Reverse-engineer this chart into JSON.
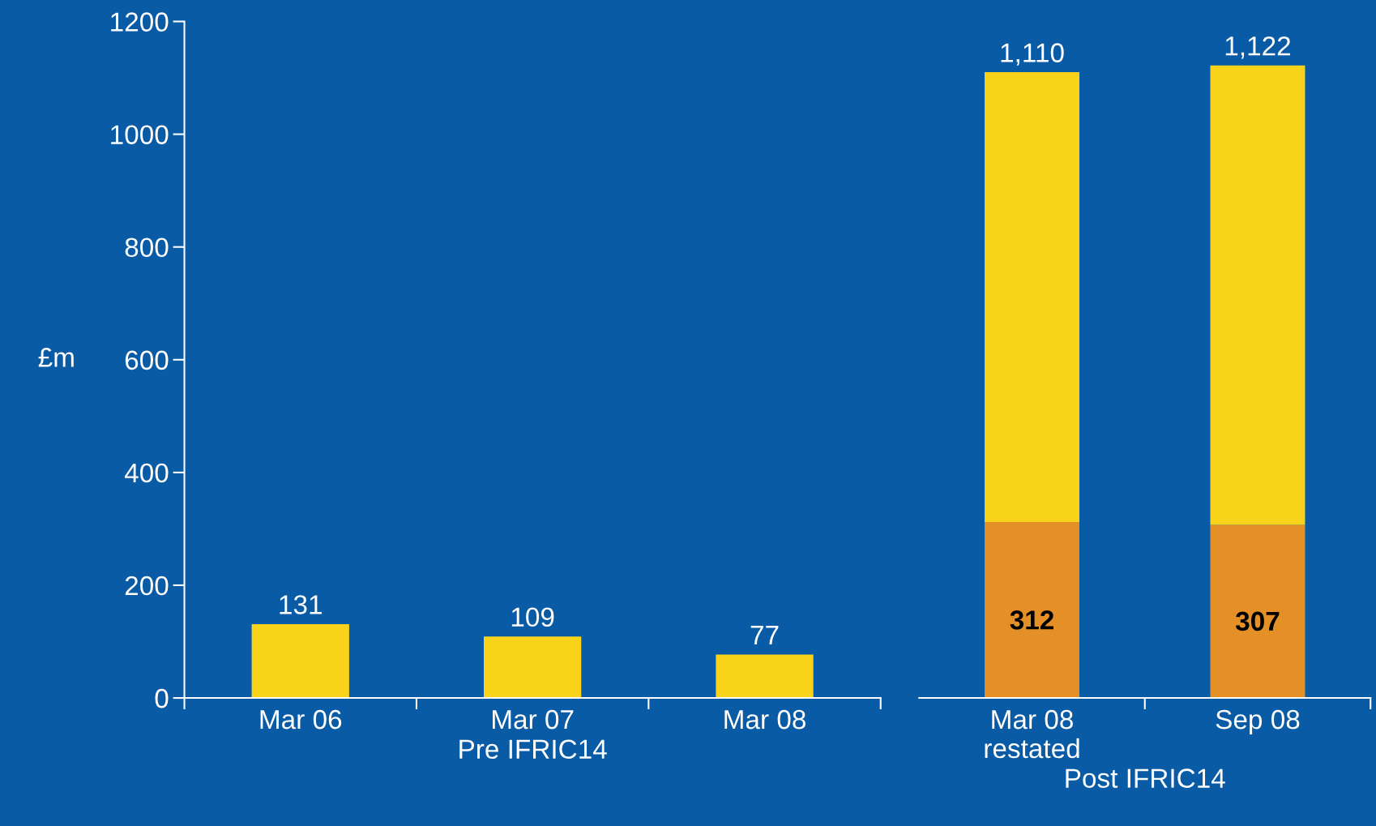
{
  "chart_data": [
    {
      "type": "bar",
      "categories": [
        "Mar 06",
        "Mar 07",
        "Mar 08"
      ],
      "xlabel": "Pre IFRIC14",
      "ylabel": "£m",
      "ylim": [
        0,
        1200
      ],
      "yticks": [
        0,
        200,
        400,
        600,
        800,
        1000,
        1200
      ],
      "grid": false,
      "legend": false,
      "data_labels": true,
      "series": [
        {
          "color": "#f9d319",
          "values": [
            131,
            109,
            77
          ]
        }
      ]
    },
    {
      "type": "bar",
      "stacked": true,
      "categories": [
        "Mar 08\nrestated",
        "Sep 08"
      ],
      "xlabel": "Post IFRIC14",
      "ylim": [
        0,
        1200
      ],
      "yticks": [
        0,
        200,
        400,
        600,
        800,
        1000,
        1200
      ],
      "tick_labels": "x",
      "grid": false,
      "legend": false,
      "totals": [
        "1,110",
        "1,122"
      ],
      "series": [
        {
          "color": "#e58f27",
          "values": [
            312,
            307
          ],
          "value_labels": [
            "312",
            "307"
          ]
        },
        {
          "color": "#f9d319",
          "values": [
            798,
            815
          ]
        }
      ]
    }
  ]
}
